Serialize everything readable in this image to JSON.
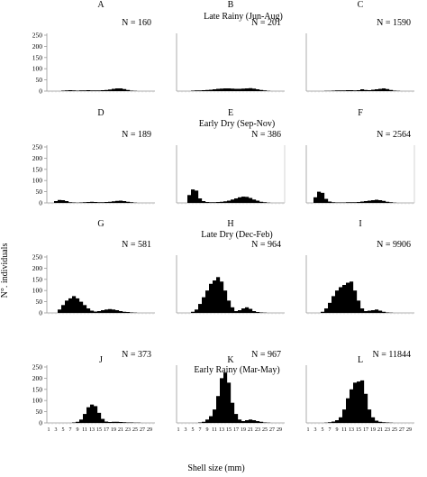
{
  "figure": {
    "ylabel": "N°. individuals",
    "xlabel": "Shell size (mm)"
  },
  "rows": [
    {
      "season": "Late Rainy (Jun-Aug)"
    },
    {
      "season": "Early Dry (Sep-Nov)"
    },
    {
      "season": "Late Dry (Dec-Feb)"
    },
    {
      "season": "Early Rainy (Mar-May)"
    }
  ],
  "chart_data": {
    "type": "bar",
    "xlabel": "Shell size (mm)",
    "ylabel": "N°. individuals",
    "ylim": [
      0,
      250
    ],
    "yticks": [
      "0",
      "50",
      "100",
      "150",
      "200",
      "250"
    ],
    "xticks": [
      "1",
      "3",
      "5",
      "7",
      "9",
      "11",
      "13",
      "15",
      "17",
      "19",
      "21",
      "23",
      "25",
      "27",
      "29"
    ],
    "categories": [
      1,
      2,
      3,
      4,
      5,
      6,
      7,
      8,
      9,
      10,
      11,
      12,
      13,
      14,
      15,
      16,
      17,
      18,
      19,
      20,
      21,
      22,
      23,
      24,
      25,
      26,
      27,
      28,
      29,
      30
    ],
    "panels": [
      {
        "letter": "A",
        "n_label": "N = 160",
        "values": [
          0,
          0,
          0,
          0,
          2,
          3,
          4,
          3,
          2,
          3,
          3,
          4,
          3,
          3,
          3,
          4,
          5,
          7,
          10,
          12,
          12,
          9,
          5,
          2,
          1,
          0,
          0,
          0,
          0,
          0
        ]
      },
      {
        "letter": "B",
        "n_label": "N = 201",
        "values": [
          0,
          0,
          0,
          0,
          2,
          3,
          3,
          4,
          5,
          6,
          8,
          10,
          11,
          12,
          12,
          11,
          10,
          10,
          11,
          12,
          13,
          11,
          8,
          5,
          3,
          1,
          0,
          0,
          0,
          0
        ]
      },
      {
        "letter": "C",
        "n_label": "N = 1590",
        "values": [
          0,
          0,
          0,
          0,
          0,
          1,
          1,
          2,
          3,
          3,
          3,
          4,
          4,
          3,
          4,
          8,
          5,
          4,
          6,
          8,
          10,
          12,
          9,
          5,
          2,
          1,
          0,
          0,
          0,
          0
        ]
      },
      {
        "letter": "D",
        "n_label": "N = 189",
        "values": [
          0,
          0,
          8,
          13,
          12,
          8,
          3,
          2,
          1,
          2,
          3,
          4,
          5,
          4,
          3,
          3,
          4,
          5,
          7,
          9,
          10,
          8,
          5,
          3,
          1,
          0,
          0,
          0,
          0,
          0
        ]
      },
      {
        "letter": "E",
        "n_label": "N = 386",
        "values": [
          0,
          0,
          0,
          35,
          60,
          55,
          20,
          8,
          4,
          3,
          3,
          4,
          5,
          7,
          10,
          15,
          20,
          25,
          28,
          27,
          22,
          15,
          10,
          5,
          3,
          1,
          0,
          0,
          0,
          0
        ]
      },
      {
        "letter": "F",
        "n_label": "N = 2564",
        "values": [
          0,
          0,
          25,
          50,
          45,
          18,
          6,
          3,
          2,
          2,
          2,
          3,
          3,
          3,
          4,
          6,
          8,
          10,
          12,
          14,
          12,
          9,
          5,
          3,
          1,
          0,
          0,
          0,
          0,
          0
        ]
      },
      {
        "letter": "G",
        "n_label": "N = 581",
        "values": [
          0,
          0,
          0,
          15,
          35,
          55,
          65,
          75,
          65,
          50,
          35,
          20,
          10,
          6,
          8,
          12,
          15,
          17,
          15,
          12,
          8,
          5,
          4,
          2,
          1,
          0,
          0,
          0,
          0,
          0
        ]
      },
      {
        "letter": "H",
        "n_label": "N = 964",
        "values": [
          0,
          0,
          0,
          0,
          5,
          15,
          40,
          70,
          100,
          130,
          145,
          160,
          140,
          100,
          55,
          25,
          8,
          12,
          20,
          25,
          18,
          8,
          4,
          2,
          1,
          0,
          0,
          0,
          0,
          0
        ]
      },
      {
        "letter": "I",
        "n_label": "N = 9906",
        "values": [
          0,
          0,
          0,
          0,
          5,
          20,
          45,
          75,
          100,
          115,
          125,
          135,
          140,
          100,
          55,
          20,
          8,
          10,
          12,
          15,
          10,
          5,
          2,
          1,
          0,
          0,
          0,
          0,
          0,
          0
        ]
      },
      {
        "letter": "J",
        "n_label": "N = 373",
        "values": [
          0,
          0,
          0,
          0,
          0,
          0,
          0,
          2,
          5,
          15,
          40,
          70,
          82,
          75,
          45,
          18,
          6,
          4,
          5,
          5,
          4,
          3,
          2,
          2,
          1,
          1,
          0,
          0,
          0,
          0
        ]
      },
      {
        "letter": "K",
        "n_label": "N = 967",
        "values": [
          0,
          0,
          0,
          0,
          0,
          0,
          2,
          5,
          15,
          30,
          60,
          120,
          200,
          225,
          180,
          90,
          40,
          15,
          8,
          12,
          15,
          12,
          8,
          5,
          2,
          1,
          0,
          0,
          0,
          0
        ]
      },
      {
        "letter": "L",
        "n_label": "N = 11844",
        "values": [
          0,
          0,
          0,
          0,
          0,
          1,
          3,
          6,
          12,
          25,
          60,
          110,
          150,
          180,
          185,
          190,
          130,
          60,
          25,
          10,
          5,
          3,
          2,
          1,
          0,
          0,
          0,
          0,
          0,
          0
        ]
      }
    ]
  }
}
